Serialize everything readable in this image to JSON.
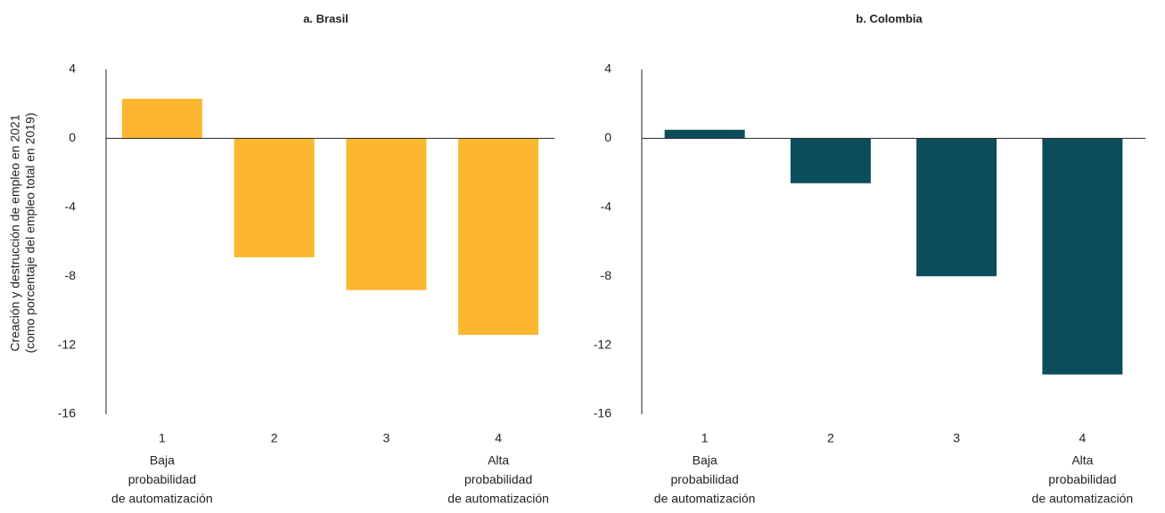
{
  "chart_data": [
    {
      "type": "bar",
      "title": "a. Brasil",
      "ylabel": [
        "Creación y destrucción de empleo en 2021",
        "(como porcentaje del empleo total en 2019)"
      ],
      "categories": [
        "1",
        "2",
        "3",
        "4"
      ],
      "category_sublabels": [
        [
          "Baja",
          "probabilidad",
          "de automatización"
        ],
        null,
        null,
        [
          "Alta",
          "probabilidad",
          "de automatización"
        ]
      ],
      "values": [
        2.3,
        -6.9,
        -8.8,
        -11.4
      ],
      "color": "#fdb62f",
      "ylim": [
        -16,
        4
      ],
      "yticks": [
        4,
        0,
        -4,
        -8,
        -12,
        -16
      ]
    },
    {
      "type": "bar",
      "title": "b. Colombia",
      "categories": [
        "1",
        "2",
        "3",
        "4"
      ],
      "category_sublabels": [
        [
          "Baja",
          "probabilidad",
          "de automatización"
        ],
        null,
        null,
        [
          "Alta",
          "probabilidad",
          "de automatización"
        ]
      ],
      "values": [
        0.5,
        -2.6,
        -8.0,
        -13.7
      ],
      "color": "#0b4d5a",
      "ylim": [
        -16,
        4
      ],
      "yticks": [
        4,
        0,
        -4,
        -8,
        -12,
        -16
      ]
    }
  ]
}
